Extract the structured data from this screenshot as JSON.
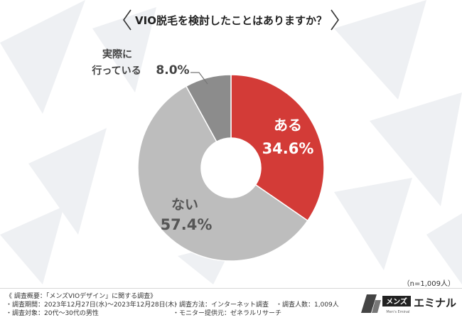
{
  "title": "VIO脱毛を検討したことはありますか？",
  "chart_data": {
    "type": "pie",
    "donut": true,
    "slices": [
      {
        "label": "ある",
        "value": 34.6,
        "display": "34.6%",
        "color": "#d33b37"
      },
      {
        "label": "ない",
        "value": 57.4,
        "display": "57.4%",
        "color": "#bdbdbd"
      },
      {
        "label": "実際に\n行っている",
        "value": 8.0,
        "display": "8.0%",
        "color": "#8c8c8c"
      }
    ],
    "sample_note": "（n=1,009人）"
  },
  "footer": {
    "summary": "《 調査概要：「メンズVIOデザイン」に関する調査》",
    "period": "・調査期間：2023年12月27日(水)～2023年12月28日(木)",
    "target": "・調査対象：20代～30代の男性",
    "method": "・調査方法：インターネット調査",
    "monitor": "・モニター提供元：ゼネラルリサーチ",
    "count": "・調査人数：1,009人"
  },
  "brand": {
    "mark": "メンズ",
    "name": "エミナル",
    "sub": "Men's Eminal"
  }
}
